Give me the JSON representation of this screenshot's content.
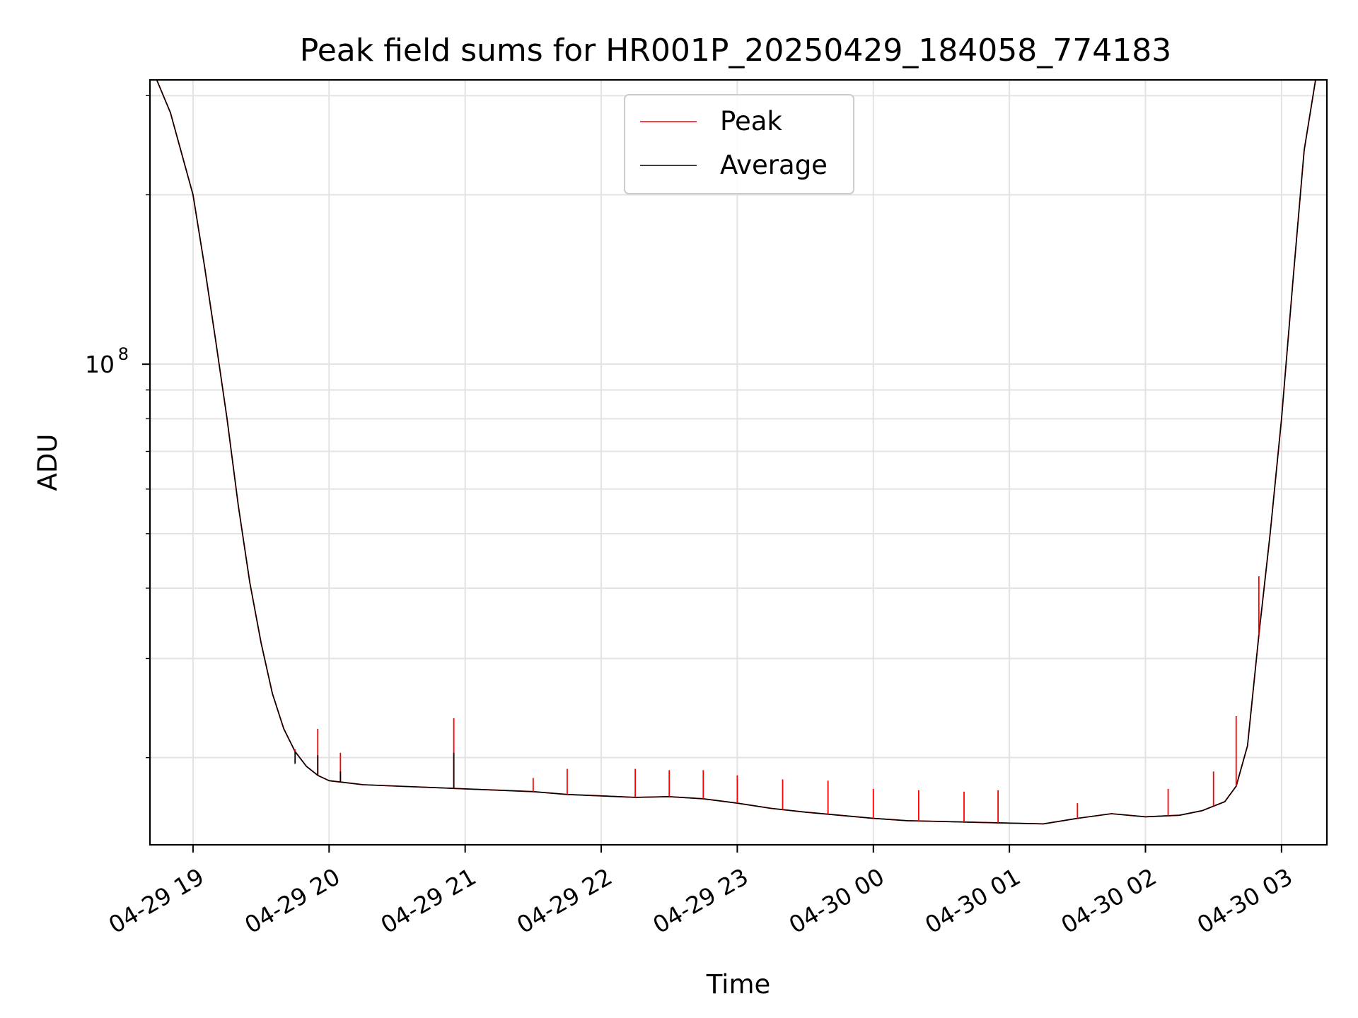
{
  "chart_data": {
    "type": "line",
    "title": "Peak field sums for HR001P_20250429_184058_774183",
    "xlabel": "Time",
    "ylabel": "ADU",
    "y_scale": "log",
    "xlim": [
      "04-29 18:41",
      "04-30 03:20"
    ],
    "ylim": [
      14000000,
      320000000
    ],
    "grid": true,
    "legend_position": "top-center",
    "x_ticks": [
      "04-29 19",
      "04-29 20",
      "04-29 21",
      "04-29 22",
      "04-29 23",
      "04-30 00",
      "04-30 01",
      "04-30 02",
      "04-30 03"
    ],
    "y_ticks": [
      {
        "label": "10",
        "exponent": "8",
        "value": 100000000
      }
    ],
    "colors": {
      "Peak": "#ff0000",
      "Average": "#000000"
    },
    "series": [
      {
        "name": "Peak",
        "color": "#ff0000",
        "x": [
          "04-29 18:44",
          "04-29 18:50",
          "04-29 19:00",
          "04-29 19:05",
          "04-29 19:10",
          "04-29 19:15",
          "04-29 19:20",
          "04-29 19:25",
          "04-29 19:30",
          "04-29 19:35",
          "04-29 19:40",
          "04-29 19:45",
          "04-29 19:50",
          "04-29 19:55",
          "04-29 20:00",
          "04-29 20:15",
          "04-29 20:30",
          "04-29 20:45",
          "04-29 21:00",
          "04-29 21:15",
          "04-29 21:30",
          "04-29 21:45",
          "04-29 22:00",
          "04-29 22:15",
          "04-29 22:30",
          "04-29 22:45",
          "04-29 23:00",
          "04-29 23:15",
          "04-29 23:30",
          "04-29 23:45",
          "04-30 00:00",
          "04-30 00:15",
          "04-30 00:30",
          "04-30 00:45",
          "04-30 01:00",
          "04-30 01:15",
          "04-30 01:30",
          "04-30 01:45",
          "04-30 02:00",
          "04-30 02:15",
          "04-30 02:25",
          "04-30 02:35",
          "04-30 02:40",
          "04-30 02:45",
          "04-30 02:50",
          "04-30 02:55",
          "04-30 03:00",
          "04-30 03:05",
          "04-30 03:10",
          "04-30 03:15"
        ],
        "values": [
          320000000,
          280000000,
          200000000,
          150000000,
          110000000,
          80000000,
          56000000,
          41000000,
          32000000,
          26000000,
          22500000,
          20500000,
          19300000,
          18600000,
          18200000,
          17900000,
          17800000,
          17700000,
          17600000,
          17500000,
          17400000,
          17200000,
          17100000,
          17000000,
          17050000,
          16900000,
          16600000,
          16250000,
          16000000,
          15800000,
          15600000,
          15450000,
          15400000,
          15350000,
          15300000,
          15250000,
          15600000,
          15900000,
          15700000,
          15800000,
          16100000,
          16700000,
          17800000,
          21000000,
          33000000,
          50000000,
          80000000,
          140000000,
          240000000,
          320000000
        ]
      },
      {
        "name": "Average",
        "color": "#000000",
        "x": [
          "04-29 18:44",
          "04-29 18:50",
          "04-29 19:00",
          "04-29 19:05",
          "04-29 19:10",
          "04-29 19:15",
          "04-29 19:20",
          "04-29 19:25",
          "04-29 19:30",
          "04-29 19:35",
          "04-29 19:40",
          "04-29 19:45",
          "04-29 19:50",
          "04-29 19:55",
          "04-29 20:00",
          "04-29 20:15",
          "04-29 20:30",
          "04-29 20:45",
          "04-29 21:00",
          "04-29 21:15",
          "04-29 21:30",
          "04-29 21:45",
          "04-29 22:00",
          "04-29 22:15",
          "04-29 22:30",
          "04-29 22:45",
          "04-29 23:00",
          "04-29 23:15",
          "04-29 23:30",
          "04-29 23:45",
          "04-30 00:00",
          "04-30 00:15",
          "04-30 00:30",
          "04-30 00:45",
          "04-30 01:00",
          "04-30 01:15",
          "04-30 01:30",
          "04-30 01:45",
          "04-30 02:00",
          "04-30 02:15",
          "04-30 02:25",
          "04-30 02:35",
          "04-30 02:40",
          "04-30 02:45",
          "04-30 02:50",
          "04-30 02:55",
          "04-30 03:00",
          "04-30 03:05",
          "04-30 03:10",
          "04-30 03:15"
        ],
        "values": [
          320000000,
          280000000,
          200000000,
          150000000,
          110000000,
          80000000,
          56000000,
          41000000,
          32000000,
          26000000,
          22500000,
          20500000,
          19300000,
          18600000,
          18200000,
          17900000,
          17800000,
          17700000,
          17600000,
          17500000,
          17400000,
          17200000,
          17100000,
          17000000,
          17050000,
          16900000,
          16600000,
          16250000,
          16000000,
          15800000,
          15600000,
          15450000,
          15400000,
          15350000,
          15300000,
          15250000,
          15600000,
          15900000,
          15700000,
          15800000,
          16100000,
          16700000,
          17800000,
          21000000,
          33000000,
          50000000,
          80000000,
          140000000,
          240000000,
          320000000
        ]
      }
    ],
    "spikes": [
      {
        "x": "04-29 19:45",
        "peak": 20700000,
        "average": 19500000
      },
      {
        "x": "04-29 19:55",
        "peak": 22500000,
        "average": 20200000
      },
      {
        "x": "04-29 20:05",
        "peak": 20400000,
        "average": 18900000
      },
      {
        "x": "04-29 20:55",
        "peak": 23500000,
        "average": 20400000
      },
      {
        "x": "04-29 21:30",
        "peak": 18400000
      },
      {
        "x": "04-29 21:45",
        "peak": 19100000
      },
      {
        "x": "04-29 22:15",
        "peak": 19100000
      },
      {
        "x": "04-29 22:30",
        "peak": 19000000
      },
      {
        "x": "04-29 22:45",
        "peak": 19000000
      },
      {
        "x": "04-29 23:00",
        "peak": 18600000
      },
      {
        "x": "04-29 23:20",
        "peak": 18300000
      },
      {
        "x": "04-29 23:40",
        "peak": 18200000
      },
      {
        "x": "04-30 00:00",
        "peak": 17600000
      },
      {
        "x": "04-30 00:20",
        "peak": 17500000
      },
      {
        "x": "04-30 00:40",
        "peak": 17400000
      },
      {
        "x": "04-30 00:55",
        "peak": 17500000
      },
      {
        "x": "04-30 01:30",
        "peak": 16600000
      },
      {
        "x": "04-30 02:10",
        "peak": 17600000
      },
      {
        "x": "04-30 02:30",
        "peak": 18900000
      },
      {
        "x": "04-30 02:40",
        "peak": 23700000
      },
      {
        "x": "04-30 02:50",
        "peak": 42000000
      }
    ]
  }
}
